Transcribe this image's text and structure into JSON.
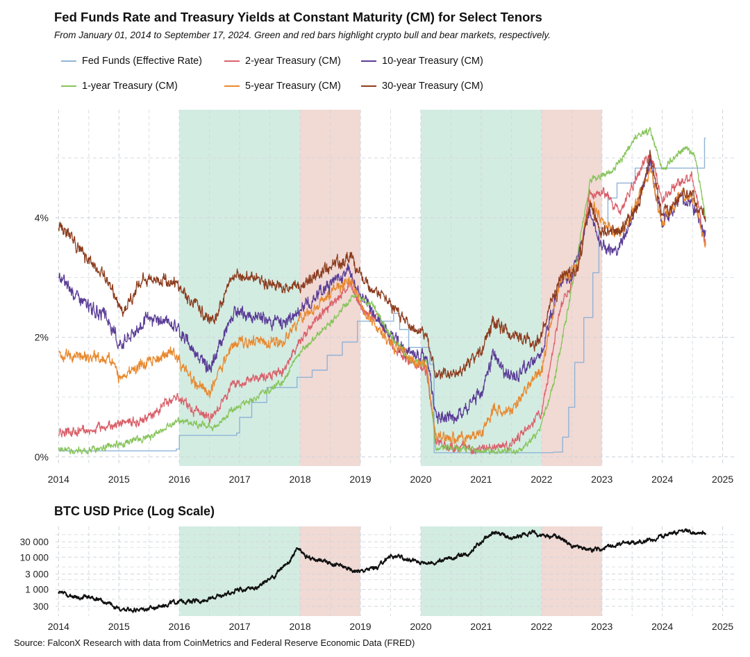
{
  "title": "Fed Funds Rate and Treasury Yields at Constant Maturity (CM) for Select Tenors",
  "subtitle": "From January 01, 2014 to September 17, 2024. Green and red bars highlight crypto bull and bear markets, respectively.",
  "btc_title": "BTC USD Price (Log Scale)",
  "source": "Source: FalconX Research with data from CoinMetrics and Federal Reserve Economic Data (FRED)",
  "colors": {
    "bull_band": "#d3ece2",
    "bear_band": "#f1d9d4",
    "grid": "#cfd6db"
  },
  "chart_data": [
    {
      "type": "line",
      "title": "Fed Funds Rate and Treasury Yields at Constant Maturity (CM) for Select Tenors",
      "subtitle": "From January 01, 2014 to September 17, 2024. Green and red bars highlight crypto bull and bear markets, respectively.",
      "xlabel": "",
      "ylabel": "",
      "x_ticks": [
        "2014",
        "2015",
        "2016",
        "2017",
        "2018",
        "2019",
        "2020",
        "2021",
        "2022",
        "2023",
        "2024",
        "2025"
      ],
      "y_ticks": [
        "0%",
        "2%",
        "4%"
      ],
      "xlim": [
        2013.95,
        2025.2
      ],
      "ylim": [
        -0.2,
        5.9
      ],
      "grid": true,
      "legend_position": "top",
      "bands": [
        {
          "kind": "bull",
          "start": 2016.0,
          "end": 2018.0
        },
        {
          "kind": "bear",
          "start": 2018.0,
          "end": 2019.0
        },
        {
          "kind": "bull",
          "start": 2020.0,
          "end": 2022.0
        },
        {
          "kind": "bear",
          "start": 2022.0,
          "end": 2023.0
        }
      ],
      "series": [
        {
          "name": "Fed Funds (Effective Rate)",
          "color": "#8fb3d6",
          "step": true,
          "noise": 0,
          "x": [
            2014.0,
            2015.95,
            2016.0,
            2016.95,
            2017.0,
            2017.2,
            2017.45,
            2017.95,
            2018.2,
            2018.45,
            2018.7,
            2018.95,
            2019.55,
            2019.65,
            2019.8,
            2020.15,
            2020.22,
            2022.2,
            2022.35,
            2022.45,
            2022.55,
            2022.7,
            2022.85,
            2022.95,
            2023.1,
            2023.25,
            2023.55,
            2024.7
          ],
          "values": [
            0.1,
            0.13,
            0.36,
            0.4,
            0.66,
            0.91,
            1.16,
            1.33,
            1.45,
            1.7,
            1.92,
            2.27,
            2.4,
            2.13,
            1.83,
            1.55,
            0.07,
            0.08,
            0.33,
            0.83,
            1.58,
            2.33,
            3.08,
            3.83,
            4.33,
            4.58,
            4.83,
            5.33
          ]
        },
        {
          "name": "2-year Treasury (CM)",
          "color": "#d9606a",
          "step": false,
          "noise": 0.05,
          "x": [
            2014.0,
            2014.5,
            2015.0,
            2015.5,
            2015.95,
            2016.2,
            2016.5,
            2016.9,
            2017.3,
            2017.7,
            2018.0,
            2018.5,
            2018.85,
            2019.0,
            2019.3,
            2019.6,
            2019.85,
            2020.1,
            2020.25,
            2020.6,
            2021.0,
            2021.5,
            2021.8,
            2022.0,
            2022.3,
            2022.6,
            2022.8,
            2023.0,
            2023.3,
            2023.6,
            2023.8,
            2024.0,
            2024.3,
            2024.5,
            2024.72
          ],
          "values": [
            0.4,
            0.45,
            0.55,
            0.65,
            1.05,
            0.8,
            0.62,
            1.2,
            1.3,
            1.4,
            1.95,
            2.55,
            2.85,
            2.5,
            2.3,
            1.75,
            1.6,
            1.4,
            0.25,
            0.15,
            0.12,
            0.22,
            0.5,
            0.75,
            2.4,
            3.2,
            4.4,
            4.45,
            4.1,
            4.75,
            5.1,
            4.3,
            4.6,
            4.7,
            3.55
          ]
        },
        {
          "name": "10-year Treasury (CM)",
          "color": "#5a3c96",
          "step": false,
          "noise": 0.07,
          "x": [
            2014.0,
            2014.4,
            2014.8,
            2015.0,
            2015.5,
            2015.9,
            2016.2,
            2016.5,
            2016.9,
            2017.3,
            2017.7,
            2018.0,
            2018.8,
            2019.0,
            2019.5,
            2019.8,
            2020.1,
            2020.25,
            2020.6,
            2021.0,
            2021.2,
            2021.5,
            2021.8,
            2022.0,
            2022.3,
            2022.5,
            2022.8,
            2023.0,
            2023.3,
            2023.6,
            2023.8,
            2024.0,
            2024.3,
            2024.5,
            2024.72
          ],
          "values": [
            3.0,
            2.6,
            2.3,
            1.9,
            2.3,
            2.25,
            1.85,
            1.45,
            2.4,
            2.35,
            2.25,
            2.45,
            3.15,
            2.7,
            2.05,
            1.7,
            1.65,
            0.7,
            0.65,
            1.1,
            1.7,
            1.3,
            1.55,
            1.75,
            2.9,
            3.0,
            4.1,
            3.5,
            3.5,
            4.25,
            4.95,
            3.9,
            4.35,
            4.25,
            3.7
          ]
        },
        {
          "name": "1-year Treasury (CM)",
          "color": "#86c45a",
          "step": false,
          "noise": 0.035,
          "x": [
            2014.0,
            2014.5,
            2015.0,
            2015.5,
            2015.95,
            2016.3,
            2016.6,
            2016.9,
            2017.3,
            2017.7,
            2018.0,
            2018.5,
            2018.9,
            2019.2,
            2019.5,
            2019.85,
            2020.1,
            2020.25,
            2020.6,
            2021.0,
            2021.6,
            2021.95,
            2022.2,
            2022.5,
            2022.8,
            2022.95,
            2023.2,
            2023.6,
            2023.8,
            2024.0,
            2024.4,
            2024.55,
            2024.72
          ],
          "values": [
            0.12,
            0.1,
            0.22,
            0.32,
            0.6,
            0.55,
            0.5,
            0.82,
            1.0,
            1.25,
            1.75,
            2.25,
            2.7,
            2.55,
            2.0,
            1.6,
            1.55,
            0.15,
            0.15,
            0.1,
            0.08,
            0.4,
            1.2,
            2.8,
            4.6,
            4.7,
            4.8,
            5.4,
            5.45,
            4.8,
            5.2,
            5.0,
            4.0
          ]
        },
        {
          "name": "5-year Treasury (CM)",
          "color": "#e8892f",
          "step": false,
          "noise": 0.06,
          "x": [
            2014.0,
            2014.4,
            2014.9,
            2015.0,
            2015.5,
            2015.9,
            2016.2,
            2016.5,
            2016.9,
            2017.3,
            2017.7,
            2018.0,
            2018.5,
            2018.85,
            2019.0,
            2019.5,
            2019.85,
            2020.1,
            2020.25,
            2020.6,
            2021.0,
            2021.2,
            2021.5,
            2021.8,
            2022.0,
            2022.3,
            2022.6,
            2022.8,
            2023.0,
            2023.3,
            2023.6,
            2023.8,
            2024.0,
            2024.3,
            2024.55,
            2024.72
          ],
          "values": [
            1.7,
            1.7,
            1.6,
            1.35,
            1.6,
            1.75,
            1.3,
            1.05,
            1.9,
            1.95,
            1.9,
            2.3,
            2.75,
            3.0,
            2.55,
            1.85,
            1.65,
            1.5,
            0.35,
            0.3,
            0.4,
            0.8,
            0.75,
            1.2,
            1.45,
            2.9,
            3.2,
            4.3,
            3.95,
            3.7,
            4.3,
            4.8,
            3.9,
            4.4,
            4.3,
            3.45
          ]
        },
        {
          "name": "30-year Treasury (CM)",
          "color": "#8c3c1e",
          "step": false,
          "noise": 0.065,
          "x": [
            2014.0,
            2014.4,
            2014.8,
            2015.05,
            2015.4,
            2015.9,
            2016.2,
            2016.55,
            2016.9,
            2017.3,
            2017.7,
            2018.0,
            2018.4,
            2018.85,
            2019.0,
            2019.5,
            2019.8,
            2020.1,
            2020.25,
            2020.6,
            2021.0,
            2021.2,
            2021.5,
            2021.9,
            2022.0,
            2022.3,
            2022.6,
            2022.8,
            2023.0,
            2023.3,
            2023.6,
            2023.8,
            2024.0,
            2024.3,
            2024.5,
            2024.72
          ],
          "values": [
            3.9,
            3.4,
            3.0,
            2.4,
            3.0,
            2.95,
            2.6,
            2.25,
            3.05,
            3.0,
            2.8,
            2.85,
            3.1,
            3.35,
            3.0,
            2.55,
            2.2,
            2.05,
            1.35,
            1.4,
            1.75,
            2.25,
            2.05,
            1.9,
            2.05,
            3.0,
            3.15,
            4.2,
            3.75,
            3.8,
            4.2,
            5.05,
            4.05,
            4.4,
            4.35,
            4.0
          ]
        }
      ]
    },
    {
      "type": "line",
      "title": "BTC USD Price (Log Scale)",
      "xlabel": "",
      "ylabel": "",
      "log_scale": true,
      "x_ticks": [
        "2014",
        "2015",
        "2016",
        "2017",
        "2018",
        "2019",
        "2020",
        "2021",
        "2022",
        "2023",
        "2024",
        "2025"
      ],
      "y_ticks": [
        "300",
        "1 000",
        "3 000",
        "10 000",
        "30 000"
      ],
      "y_tick_values": [
        300,
        1000,
        3000,
        10000,
        30000
      ],
      "xlim": [
        2013.95,
        2025.2
      ],
      "ylim": [
        150,
        90000
      ],
      "grid": true,
      "bands": [
        {
          "kind": "bull",
          "start": 2016.0,
          "end": 2018.0
        },
        {
          "kind": "bear",
          "start": 2018.0,
          "end": 2019.0
        },
        {
          "kind": "bull",
          "start": 2020.0,
          "end": 2022.0
        },
        {
          "kind": "bear",
          "start": 2022.0,
          "end": 2023.0
        }
      ],
      "series": [
        {
          "color": "#111111",
          "noise": 0.045,
          "x": [
            2014.0,
            2014.2,
            2014.5,
            2014.8,
            2015.05,
            2015.3,
            2015.6,
            2015.85,
            2016.0,
            2016.4,
            2016.7,
            2016.95,
            2017.3,
            2017.6,
            2017.85,
            2017.96,
            2018.1,
            2018.4,
            2018.85,
            2019.0,
            2019.3,
            2019.5,
            2019.8,
            2020.0,
            2020.2,
            2020.5,
            2020.8,
            2021.0,
            2021.25,
            2021.5,
            2021.85,
            2022.0,
            2022.3,
            2022.5,
            2022.85,
            2023.0,
            2023.3,
            2023.6,
            2023.9,
            2024.2,
            2024.4,
            2024.72
          ],
          "values": [
            800,
            600,
            600,
            380,
            220,
            240,
            270,
            380,
            430,
            450,
            650,
            950,
            1150,
            2700,
            8000,
            17500,
            10000,
            7500,
            4000,
            3700,
            5000,
            11000,
            8300,
            7200,
            6500,
            9500,
            13500,
            29000,
            58000,
            35000,
            60000,
            47000,
            42000,
            21000,
            17000,
            16600,
            26000,
            28000,
            38000,
            60000,
            63000,
            60000
          ]
        }
      ]
    }
  ]
}
